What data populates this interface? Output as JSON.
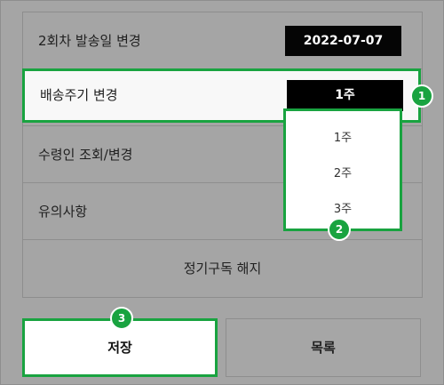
{
  "menu": {
    "change_date_label": "2회차 발송일 변경",
    "change_date_value": "2022-07-07",
    "frequency_label": "배송주기 변경",
    "frequency_value": "1주",
    "recipient_label": "수령인 조회/변경",
    "notice_label": "유의사항",
    "cancel_label": "정기구독 해지"
  },
  "dropdown": {
    "options": [
      "1주",
      "2주",
      "3주"
    ]
  },
  "buttons": {
    "save": "저장",
    "list": "목록"
  },
  "badges": [
    "1",
    "2",
    "3"
  ],
  "colors": {
    "highlight": "#19a340",
    "overlay": "#a5a5a5",
    "button_dark": "#000000"
  }
}
